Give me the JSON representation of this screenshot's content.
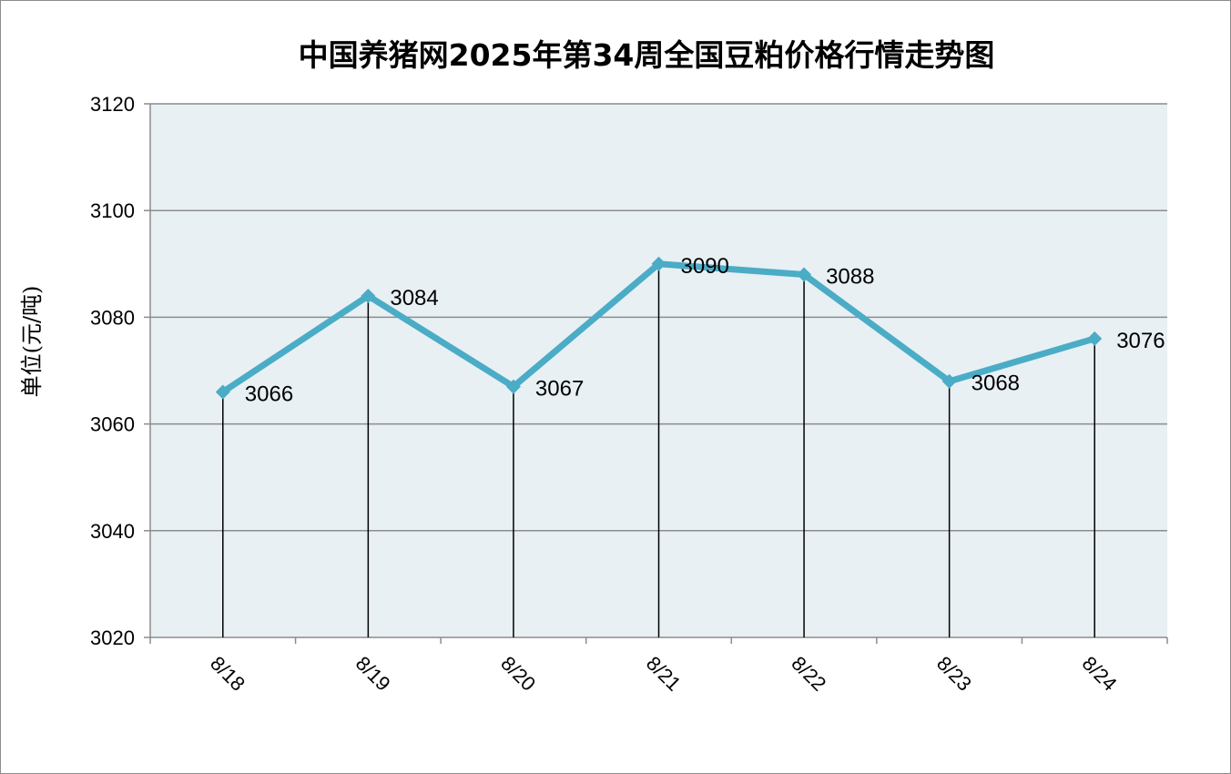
{
  "chart_data": {
    "type": "line",
    "title": "中国养猪网2025年第34周全国豆粕价格行情走势图",
    "ylabel": "单位(元/吨)",
    "xlabel": "",
    "categories": [
      "8/18",
      "8/19",
      "8/20",
      "8/21",
      "8/22",
      "8/23",
      "8/24"
    ],
    "values": [
      3066,
      3084,
      3067,
      3090,
      3088,
      3068,
      3076
    ],
    "ylim": [
      3020,
      3120
    ],
    "yticks": [
      3020,
      3040,
      3060,
      3080,
      3100,
      3120
    ],
    "grid": true,
    "drop_lines": true,
    "data_labels": true,
    "colors": {
      "line": "#4BACC6",
      "plot_bg": "#E8F0F4",
      "grid": "#8C8C8C",
      "drop_line": "#000000"
    }
  }
}
